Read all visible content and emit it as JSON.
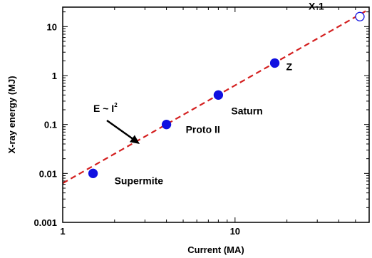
{
  "chart_data": {
    "type": "scatter",
    "xlabel": "Current (MA)",
    "ylabel": "X-ray energy (MJ)",
    "xscale": "log",
    "yscale": "log",
    "xlim": [
      1,
      60
    ],
    "ylim": [
      0.001,
      25
    ],
    "xticks": [
      {
        "value": 1,
        "label": "1"
      },
      {
        "value": 10,
        "label": "10"
      }
    ],
    "yticks": [
      {
        "value": 0.001,
        "label": "0.001"
      },
      {
        "value": 0.01,
        "label": "0.01"
      },
      {
        "value": 0.1,
        "label": "0.1"
      },
      {
        "value": 1,
        "label": "1"
      },
      {
        "value": 10,
        "label": "10"
      }
    ],
    "points": [
      {
        "label": "Supermite",
        "x": 1.5,
        "y": 0.01,
        "filled": true
      },
      {
        "label": "Proto II",
        "x": 4,
        "y": 0.1,
        "filled": true
      },
      {
        "label": "Saturn",
        "x": 8,
        "y": 0.4,
        "filled": true
      },
      {
        "label": "Z",
        "x": 17,
        "y": 1.8,
        "filled": true
      },
      {
        "label": "X-1",
        "x": 53,
        "y": 16,
        "filled": false
      }
    ],
    "fit_line": {
      "x": [
        1,
        60
      ],
      "y": [
        0.0063,
        22.7
      ],
      "color": "#d42020",
      "style": "dashed"
    },
    "annotation": {
      "text": "E ~ I",
      "superscript": "2"
    },
    "marker_color": "#1010e0"
  }
}
